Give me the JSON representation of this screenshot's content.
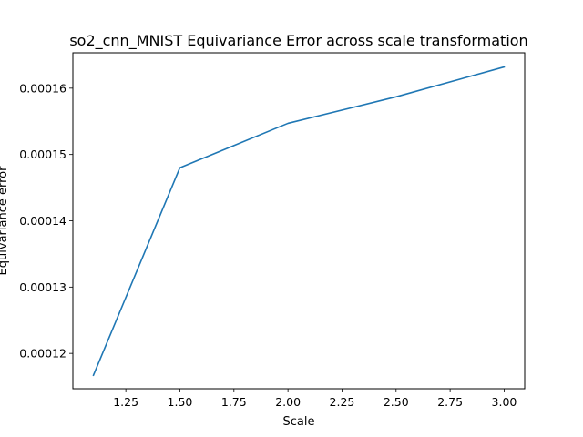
{
  "chart_data": {
    "type": "line",
    "title": "so2_cnn_MNIST Equivariance Error across scale transformation",
    "xlabel": "Scale",
    "ylabel": "Equivariance error",
    "xlim": [
      1.005,
      3.095
    ],
    "ylim": [
      0.000114667,
      0.000165333
    ],
    "xticks": [
      1.25,
      1.5,
      1.75,
      2.0,
      2.25,
      2.5,
      2.75,
      3.0
    ],
    "xtick_labels": [
      "1.25",
      "1.50",
      "1.75",
      "2.00",
      "2.25",
      "2.50",
      "2.75",
      "3.00"
    ],
    "yticks": [
      0.00012,
      0.00013,
      0.00014,
      0.00015,
      0.00016
    ],
    "ytick_labels": [
      "0.00012",
      "0.00013",
      "0.00014",
      "0.00015",
      "0.00016"
    ],
    "grid": false,
    "series": [
      {
        "x": [
          1.1,
          1.5,
          2.0,
          2.5,
          3.0
        ],
        "values": [
          0.0001167,
          0.000148,
          0.0001547,
          0.0001587,
          0.0001632
        ],
        "color": "#1f77b4"
      }
    ]
  }
}
